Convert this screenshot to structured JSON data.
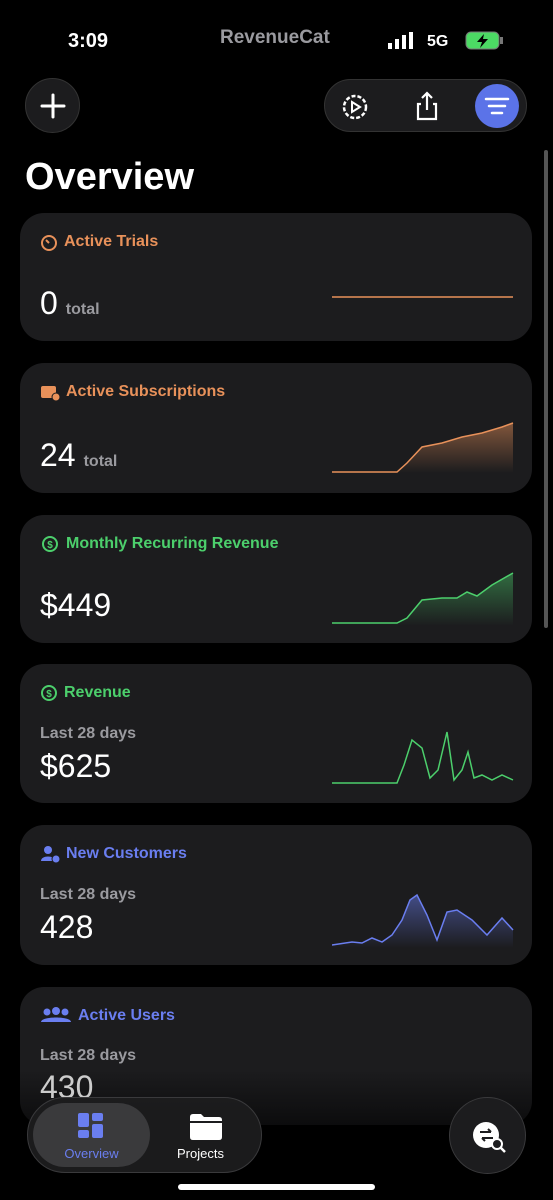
{
  "status_bar": {
    "time": "3:09",
    "app": "RevenueCat",
    "network": "5G"
  },
  "page_title": "Overview",
  "cards": [
    {
      "title": "Active Trials",
      "value": "0",
      "unit": "total"
    },
    {
      "title": "Active Subscriptions",
      "value": "24",
      "unit": "total"
    },
    {
      "title": "Monthly Recurring Revenue",
      "value": "$449"
    },
    {
      "title": "Revenue",
      "subtitle": "Last 28 days",
      "value": "$625"
    },
    {
      "title": "New Customers",
      "subtitle": "Last 28 days",
      "value": "428"
    },
    {
      "title": "Active Users",
      "subtitle": "Last 28 days",
      "value": "430"
    }
  ],
  "tab_bar": {
    "tabs": [
      "Overview",
      "Projects"
    ]
  }
}
